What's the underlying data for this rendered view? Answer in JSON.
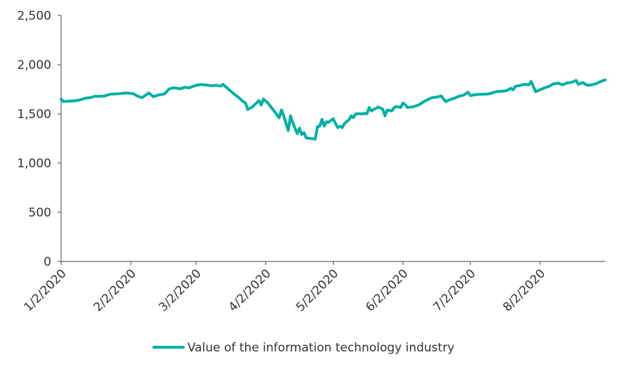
{
  "chart_data": {
    "type": "line",
    "title": "",
    "xlabel": "",
    "ylabel": "",
    "ylim": [
      0,
      2500
    ],
    "yticks": [
      0,
      500,
      1000,
      1500,
      2000,
      2500
    ],
    "ytick_labels": [
      "0",
      "500",
      "1,000",
      "1,500",
      "2,000",
      "2,500"
    ],
    "xlim": [
      "2020-01-02",
      "2020-08-31"
    ],
    "xtick_labels": [
      "1/2/2020",
      "2/2/2020",
      "3/2/2020",
      "4/2/2020",
      "5/2/2020",
      "6/2/2020",
      "7/2/2020",
      "8/2/2020"
    ],
    "xtick_dates": [
      "2020-01-02",
      "2020-02-02",
      "2020-03-02",
      "2020-04-02",
      "2020-05-02",
      "2020-06-02",
      "2020-07-02",
      "2020-08-02"
    ],
    "grid": false,
    "legend_position": "bottom",
    "series": [
      {
        "name": "Value of the information technology industry",
        "color": "#00b0a4",
        "points": [
          [
            "2020-01-02",
            1650
          ],
          [
            "2020-01-03",
            1625
          ],
          [
            "2020-01-06",
            1630
          ],
          [
            "2020-01-08",
            1632
          ],
          [
            "2020-01-10",
            1640
          ],
          [
            "2020-01-13",
            1660
          ],
          [
            "2020-01-15",
            1665
          ],
          [
            "2020-01-17",
            1678
          ],
          [
            "2020-01-21",
            1680
          ],
          [
            "2020-01-24",
            1700
          ],
          [
            "2020-01-28",
            1705
          ],
          [
            "2020-01-31",
            1712
          ],
          [
            "2020-02-03",
            1705
          ],
          [
            "2020-02-05",
            1680
          ],
          [
            "2020-02-07",
            1665
          ],
          [
            "2020-02-10",
            1712
          ],
          [
            "2020-02-12",
            1675
          ],
          [
            "2020-02-14",
            1690
          ],
          [
            "2020-02-17",
            1702
          ],
          [
            "2020-02-19",
            1752
          ],
          [
            "2020-02-21",
            1765
          ],
          [
            "2020-02-24",
            1755
          ],
          [
            "2020-02-26",
            1770
          ],
          [
            "2020-02-28",
            1765
          ],
          [
            "2020-03-02",
            1790
          ],
          [
            "2020-03-04",
            1798
          ],
          [
            "2020-03-06",
            1795
          ],
          [
            "2020-03-09",
            1785
          ],
          [
            "2020-03-11",
            1790
          ],
          [
            "2020-03-13",
            1782
          ],
          [
            "2020-03-14",
            1800
          ],
          [
            "2020-03-16",
            1760
          ],
          [
            "2020-03-19",
            1700
          ],
          [
            "2020-03-21",
            1665
          ],
          [
            "2020-03-23",
            1625
          ],
          [
            "2020-03-24",
            1610
          ],
          [
            "2020-03-25",
            1545
          ],
          [
            "2020-03-27",
            1570
          ],
          [
            "2020-03-30",
            1635
          ],
          [
            "2020-03-31",
            1590
          ],
          [
            "2020-04-01",
            1650
          ],
          [
            "2020-04-03",
            1610
          ],
          [
            "2020-04-06",
            1520
          ],
          [
            "2020-04-08",
            1460
          ],
          [
            "2020-04-09",
            1540
          ],
          [
            "2020-04-10",
            1480
          ],
          [
            "2020-04-12",
            1330
          ],
          [
            "2020-04-13",
            1480
          ],
          [
            "2020-04-14",
            1410
          ],
          [
            "2020-04-16",
            1300
          ],
          [
            "2020-04-17",
            1355
          ],
          [
            "2020-04-18",
            1290
          ],
          [
            "2020-04-19",
            1310
          ],
          [
            "2020-04-20",
            1255
          ],
          [
            "2020-04-22",
            1250
          ],
          [
            "2020-04-24",
            1245
          ],
          [
            "2020-04-25",
            1370
          ],
          [
            "2020-04-26",
            1375
          ],
          [
            "2020-04-27",
            1445
          ],
          [
            "2020-04-28",
            1375
          ],
          [
            "2020-04-29",
            1420
          ],
          [
            "2020-04-30",
            1415
          ],
          [
            "2020-05-02",
            1450
          ],
          [
            "2020-05-04",
            1360
          ],
          [
            "2020-05-05",
            1375
          ],
          [
            "2020-05-06",
            1360
          ],
          [
            "2020-05-07",
            1400
          ],
          [
            "2020-05-09",
            1440
          ],
          [
            "2020-05-10",
            1480
          ],
          [
            "2020-05-11",
            1462
          ],
          [
            "2020-05-12",
            1500
          ],
          [
            "2020-05-14",
            1502
          ],
          [
            "2020-05-15",
            1500
          ],
          [
            "2020-05-16",
            1505
          ],
          [
            "2020-05-17",
            1500
          ],
          [
            "2020-05-18",
            1565
          ],
          [
            "2020-05-19",
            1530
          ],
          [
            "2020-05-20",
            1545
          ],
          [
            "2020-05-21",
            1555
          ],
          [
            "2020-05-22",
            1570
          ],
          [
            "2020-05-23",
            1560
          ],
          [
            "2020-05-24",
            1548
          ],
          [
            "2020-05-25",
            1480
          ],
          [
            "2020-05-26",
            1540
          ],
          [
            "2020-05-28",
            1530
          ],
          [
            "2020-05-29",
            1560
          ],
          [
            "2020-05-30",
            1575
          ],
          [
            "2020-06-01",
            1565
          ],
          [
            "2020-06-02",
            1610
          ],
          [
            "2020-06-03",
            1595
          ],
          [
            "2020-06-04",
            1565
          ],
          [
            "2020-06-06",
            1570
          ],
          [
            "2020-06-07",
            1575
          ],
          [
            "2020-06-09",
            1590
          ],
          [
            "2020-06-11",
            1620
          ],
          [
            "2020-06-13",
            1645
          ],
          [
            "2020-06-15",
            1665
          ],
          [
            "2020-06-17",
            1670
          ],
          [
            "2020-06-19",
            1682
          ],
          [
            "2020-06-21",
            1625
          ],
          [
            "2020-06-23",
            1645
          ],
          [
            "2020-06-25",
            1660
          ],
          [
            "2020-06-27",
            1680
          ],
          [
            "2020-06-29",
            1690
          ],
          [
            "2020-07-01",
            1720
          ],
          [
            "2020-07-02",
            1685
          ],
          [
            "2020-07-04",
            1695
          ],
          [
            "2020-07-06",
            1698
          ],
          [
            "2020-07-08",
            1700
          ],
          [
            "2020-07-10",
            1702
          ],
          [
            "2020-07-12",
            1715
          ],
          [
            "2020-07-14",
            1728
          ],
          [
            "2020-07-16",
            1730
          ],
          [
            "2020-07-18",
            1735
          ],
          [
            "2020-07-20",
            1760
          ],
          [
            "2020-07-21",
            1745
          ],
          [
            "2020-07-22",
            1780
          ],
          [
            "2020-07-24",
            1788
          ],
          [
            "2020-07-26",
            1800
          ],
          [
            "2020-07-28",
            1795
          ],
          [
            "2020-07-29",
            1830
          ],
          [
            "2020-07-31",
            1725
          ],
          [
            "2020-08-02",
            1745
          ],
          [
            "2020-08-04",
            1765
          ],
          [
            "2020-08-06",
            1780
          ],
          [
            "2020-08-08",
            1805
          ],
          [
            "2020-08-10",
            1812
          ],
          [
            "2020-08-12",
            1795
          ],
          [
            "2020-08-14",
            1815
          ],
          [
            "2020-08-16",
            1820
          ],
          [
            "2020-08-18",
            1840
          ],
          [
            "2020-08-19",
            1800
          ],
          [
            "2020-08-21",
            1818
          ],
          [
            "2020-08-23",
            1790
          ],
          [
            "2020-08-25",
            1795
          ],
          [
            "2020-08-27",
            1808
          ],
          [
            "2020-08-29",
            1830
          ],
          [
            "2020-08-31",
            1845
          ]
        ]
      }
    ]
  }
}
